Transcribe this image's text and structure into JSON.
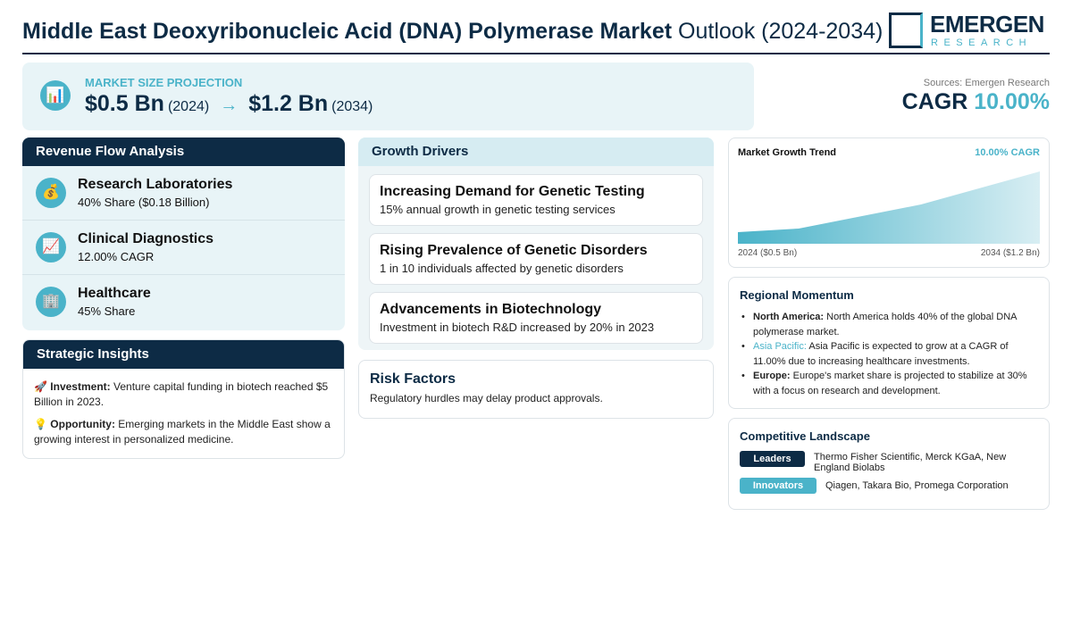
{
  "header": {
    "title_bold": "Middle East Deoxyribonucleic Acid (DNA) Polymerase Market",
    "title_light": "Outlook (2024-2034)",
    "logo_main": "EMERGEN",
    "logo_sub": "RESEARCH"
  },
  "projection": {
    "label": "MARKET SIZE PROJECTION",
    "icon": "bar-chart-icon",
    "start_value": "$0.5 Bn",
    "start_year": "(2024)",
    "arrow": "→",
    "end_value": "$1.2 Bn",
    "end_year": "(2034)"
  },
  "sources": "Sources: Emergen Research",
  "cagr": {
    "label": "CAGR",
    "value": "10.00%"
  },
  "revenue": {
    "title": "Revenue Flow Analysis",
    "items": [
      {
        "icon": "money-bag-icon",
        "glyph": "💰",
        "title": "Research Laboratories",
        "sub": "40% Share ($0.18 Billion)"
      },
      {
        "icon": "chart-up-icon",
        "glyph": "📈",
        "title": "Clinical Diagnostics",
        "sub": "12.00% CAGR"
      },
      {
        "icon": "building-icon",
        "glyph": "🏢",
        "title": "Healthcare",
        "sub": "45% Share"
      }
    ]
  },
  "insights": {
    "title": "Strategic Insights",
    "items": [
      {
        "glyph": "🚀",
        "label": "Investment:",
        "text": "Venture capital funding in biotech reached $5 Billion in 2023."
      },
      {
        "glyph": "💡",
        "label": "Opportunity:",
        "text": "Emerging markets in the Middle East show a growing interest in personalized medicine."
      }
    ]
  },
  "drivers": {
    "title": "Growth Drivers",
    "items": [
      {
        "title": "Increasing Demand for Genetic Testing",
        "sub": "15% annual growth in genetic testing services"
      },
      {
        "title": "Rising Prevalence of Genetic Disorders",
        "sub": "1 in 10 individuals affected by genetic disorders"
      },
      {
        "title": "Advancements in Biotechnology",
        "sub": "Investment in biotech R&D increased by 20% in 2023"
      }
    ]
  },
  "risk": {
    "title": "Risk Factors",
    "text": "Regulatory hurdles may delay product approvals."
  },
  "trend": {
    "title": "Market Growth Trend",
    "cagr": "10.00% CAGR",
    "start_label": "2024 ($0.5 Bn)",
    "end_label": "2034 ($1.2 Bn)"
  },
  "regional": {
    "title": "Regional Momentum",
    "items": [
      {
        "label": "North America:",
        "text": "North America holds 40% of the global DNA polymerase market."
      },
      {
        "label": "Asia Pacific:",
        "text": "Asia Pacific is expected to grow at a CAGR of 11.00% due to increasing healthcare investments."
      },
      {
        "label": "Europe:",
        "text": "Europe's market share is projected to stabilize at 30% with a focus on research and development."
      }
    ]
  },
  "competitive": {
    "title": "Competitive Landscape",
    "leaders_label": "Leaders",
    "leaders": "Thermo Fisher Scientific, Merck KGaA, New England Biolabs",
    "innovators_label": "Innovators",
    "innovators": "Qiagen, Takara Bio, Promega Corporation"
  },
  "colors": {
    "navy": "#0d2b45",
    "accent": "#4ab3c9",
    "panel": "#e8f4f7"
  }
}
